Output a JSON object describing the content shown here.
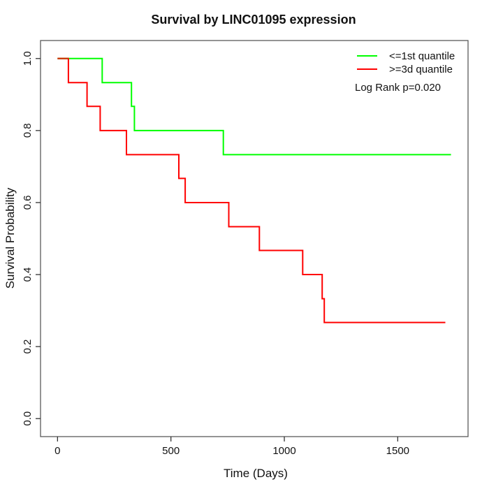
{
  "chart_data": {
    "type": "line",
    "subtype": "kaplan-meier-step",
    "title": "Survival by LINC01095 expression",
    "xlabel": "Time (Days)",
    "ylabel": "Survival Probability",
    "x_ticks": [
      0,
      500,
      1000,
      1500
    ],
    "y_ticks": [
      "0.0",
      "0.2",
      "0.4",
      "0.6",
      "0.8",
      "1.0"
    ],
    "xlim": [
      -75,
      1810
    ],
    "ylim": [
      -0.05,
      1.05
    ],
    "grid": false,
    "legend_position": "top-right",
    "annotation": "Log Rank p=0.020",
    "axis_color": "#333333",
    "overlap_color": "#cc3300",
    "series": [
      {
        "name": "<=1st quantile",
        "color": "#00ff00",
        "steps": [
          [
            0,
            1.0
          ],
          [
            197,
            0.933
          ],
          [
            326,
            0.867
          ],
          [
            339,
            0.8
          ],
          [
            731,
            0.733
          ],
          [
            1735,
            0.733
          ]
        ]
      },
      {
        "name": ">=3d quantile",
        "color": "#ff0000",
        "steps": [
          [
            0,
            1.0
          ],
          [
            48,
            0.933
          ],
          [
            130,
            0.867
          ],
          [
            188,
            0.8
          ],
          [
            304,
            0.733
          ],
          [
            535,
            0.667
          ],
          [
            563,
            0.6
          ],
          [
            755,
            0.533
          ],
          [
            890,
            0.467
          ],
          [
            1081,
            0.4
          ],
          [
            1167,
            0.333
          ],
          [
            1176,
            0.267
          ],
          [
            1710,
            0.267
          ]
        ]
      }
    ]
  }
}
